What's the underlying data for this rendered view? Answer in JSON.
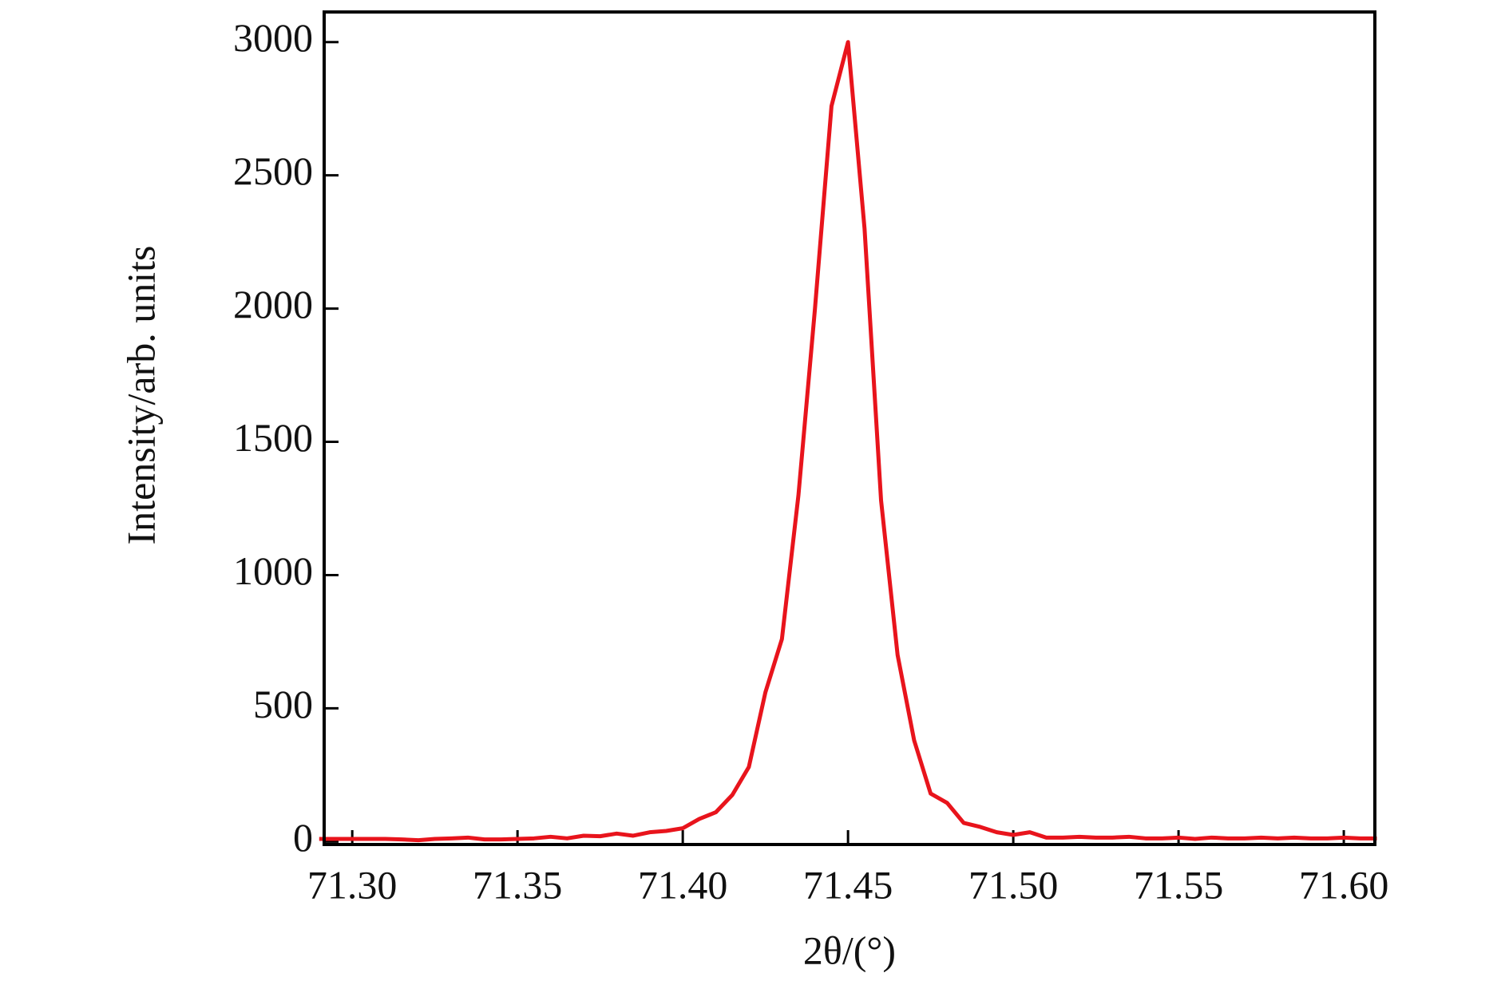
{
  "chart_data": {
    "type": "line",
    "x_label": "2θ/(°)",
    "y_label": "Intensity/arb. units",
    "x": [
      71.29,
      71.295,
      71.3,
      71.305,
      71.31,
      71.315,
      71.32,
      71.325,
      71.33,
      71.335,
      71.34,
      71.345,
      71.35,
      71.355,
      71.36,
      71.365,
      71.37,
      71.375,
      71.38,
      71.385,
      71.39,
      71.395,
      71.4,
      71.405,
      71.41,
      71.415,
      71.42,
      71.425,
      71.43,
      71.435,
      71.44,
      71.445,
      71.45,
      71.455,
      71.46,
      71.465,
      71.47,
      71.475,
      71.48,
      71.485,
      71.49,
      71.495,
      71.5,
      71.505,
      71.51,
      71.515,
      71.52,
      71.525,
      71.53,
      71.535,
      71.54,
      71.545,
      71.55,
      71.555,
      71.56,
      71.565,
      71.57,
      71.575,
      71.58,
      71.585,
      71.59,
      71.595,
      71.6,
      71.605,
      71.61
    ],
    "series": [
      {
        "color": "#e8141c",
        "values": [
          10,
          10,
          10,
          10,
          10,
          8,
          5,
          10,
          12,
          15,
          8,
          8,
          10,
          12,
          18,
          12,
          22,
          20,
          30,
          22,
          35,
          40,
          50,
          85,
          110,
          175,
          280,
          560,
          760,
          1300,
          2000,
          2760,
          3000,
          2300,
          1280,
          700,
          380,
          180,
          145,
          70,
          55,
          35,
          25,
          35,
          15,
          15,
          18,
          15,
          15,
          18,
          12,
          12,
          15,
          10,
          15,
          12,
          12,
          15,
          12,
          15,
          12,
          12,
          15,
          12,
          12
        ]
      }
    ],
    "xlim": [
      71.2915,
      71.6094
    ],
    "ylim": [
      -11,
      3113
    ],
    "xticks": [
      {
        "value": 71.3,
        "label": "71.30"
      },
      {
        "value": 71.35,
        "label": "71.35"
      },
      {
        "value": 71.4,
        "label": "71.40"
      },
      {
        "value": 71.45,
        "label": "71.45"
      },
      {
        "value": 71.5,
        "label": "71.50"
      },
      {
        "value": 71.55,
        "label": "71.55"
      },
      {
        "value": 71.6,
        "label": "71.60"
      }
    ],
    "yticks": [
      0,
      500,
      1000,
      1500,
      2000,
      2500,
      3000
    ]
  }
}
